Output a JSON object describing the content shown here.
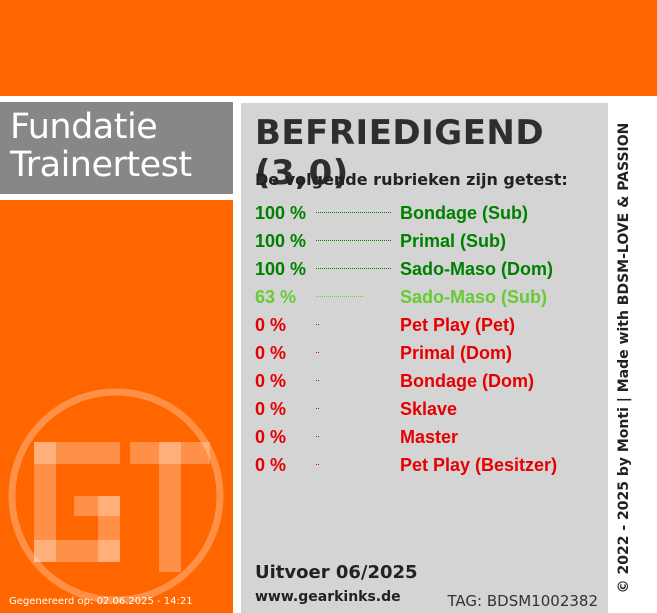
{
  "header": {
    "band_color": "#ff6600"
  },
  "sidebar": {
    "title_line1": "Fundatie",
    "title_line2": "Trainertest",
    "generated": "Gegenereerd op: 02.06.2025 - 14:21",
    "logo_icon": "gt-monogram-watermark-icon"
  },
  "result": {
    "title": "BEFRIEDIGEND (3,0)",
    "subtitle": "De volgende rubrieken zijn getest:",
    "rows": [
      {
        "pct": "100 %",
        "value": 100,
        "label": "Bondage (Sub)",
        "color": "#008000"
      },
      {
        "pct": "100 %",
        "value": 100,
        "label": "Primal (Sub)",
        "color": "#008000"
      },
      {
        "pct": "100 %",
        "value": 100,
        "label": "Sado-Maso (Dom)",
        "color": "#008000"
      },
      {
        "pct": "63 %",
        "value": 63,
        "label": "Sado-Maso (Sub)",
        "color": "#66cc33"
      },
      {
        "pct": "0 %",
        "value": 0,
        "label": "Pet Play (Pet)",
        "color": "#e60000"
      },
      {
        "pct": "0 %",
        "value": 0,
        "label": "Primal (Dom)",
        "color": "#e60000"
      },
      {
        "pct": "0 %",
        "value": 0,
        "label": "Bondage (Dom)",
        "color": "#e60000"
      },
      {
        "pct": "0 %",
        "value": 0,
        "label": "Sklave",
        "color": "#e60000"
      },
      {
        "pct": "0 %",
        "value": 0,
        "label": "Master",
        "color": "#e60000"
      },
      {
        "pct": "0 %",
        "value": 0,
        "label": "Pet Play (Besitzer)",
        "color": "#e60000"
      }
    ],
    "uitvoer": "Uitvoer 06/2025",
    "website": "www.gearkinks.de",
    "tag": "TAG: BDSM1002382"
  },
  "footer": {
    "copyright": "© 2022 - 2025 by Monti | Made with BDSM-LOVE & PASSION"
  }
}
